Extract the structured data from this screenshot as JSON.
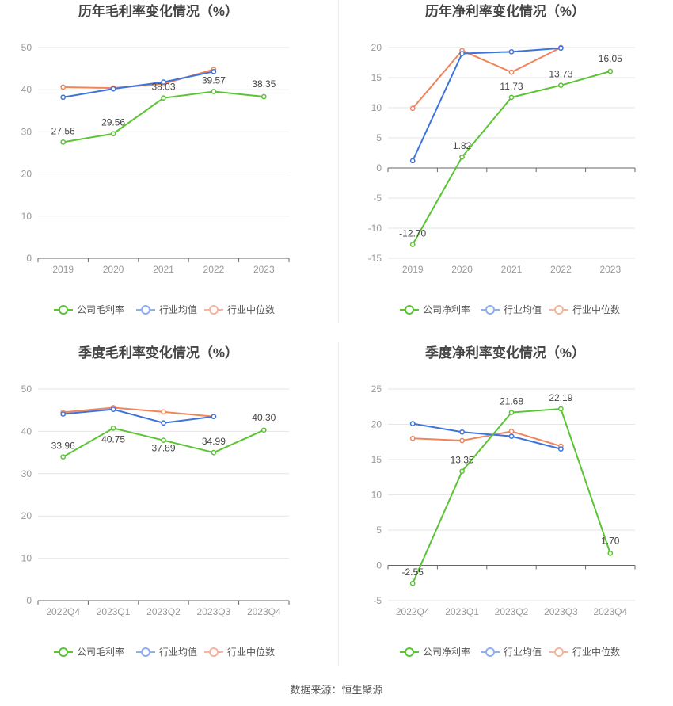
{
  "legend_labels": {
    "gross": [
      "公司毛利率",
      "行业均值",
      "行业中位数"
    ],
    "net": [
      "公司净利率",
      "行业均值",
      "行业中位数"
    ]
  },
  "colors": {
    "company": "#5ac434",
    "industry_avg": "#3d74db",
    "industry_median": "#f0845a",
    "avg_legend": "#8eaff0",
    "median_legend": "#f6b49a",
    "grid": "#e6e6e6",
    "axis": "#666666",
    "tick": "#999999",
    "title": "#444444"
  },
  "source": "数据来源：恒生聚源",
  "chart_data": [
    {
      "type": "line",
      "title": "历年毛利率变化情况（%）",
      "categories": [
        "2019",
        "2020",
        "2021",
        "2022",
        "2023"
      ],
      "ylim": [
        0,
        50
      ],
      "yticks": [
        0,
        10,
        20,
        30,
        40,
        50
      ],
      "series": [
        {
          "name": "公司毛利率",
          "values": [
            27.56,
            29.56,
            38.03,
            39.57,
            38.35
          ],
          "labels": [
            "27.56",
            "29.56",
            "38.03",
            "39.57",
            "38.35"
          ]
        },
        {
          "name": "行业均值",
          "values": [
            38.2,
            40.2,
            41.8,
            44.3,
            null
          ]
        },
        {
          "name": "行业中位数",
          "values": [
            40.6,
            40.4,
            41.4,
            44.8,
            null
          ]
        }
      ]
    },
    {
      "type": "line",
      "title": "历年净利率变化情况（%）",
      "categories": [
        "2019",
        "2020",
        "2021",
        "2022",
        "2023"
      ],
      "ylim": [
        -15,
        20
      ],
      "yticks": [
        -15,
        -10,
        -5,
        0,
        5,
        10,
        15,
        20
      ],
      "series": [
        {
          "name": "公司净利率",
          "values": [
            -12.7,
            1.82,
            11.73,
            13.73,
            16.05
          ],
          "labels": [
            "-12.70",
            "1.82",
            "11.73",
            "13.73",
            "16.05"
          ]
        },
        {
          "name": "行业均值",
          "values": [
            1.2,
            19.0,
            19.3,
            19.9,
            null
          ]
        },
        {
          "name": "行业中位数",
          "values": [
            9.9,
            19.5,
            15.9,
            20.0,
            null
          ]
        }
      ]
    },
    {
      "type": "line",
      "title": "季度毛利率变化情况（%）",
      "categories": [
        "2022Q4",
        "2023Q1",
        "2023Q2",
        "2023Q3",
        "2023Q4"
      ],
      "ylim": [
        0,
        50
      ],
      "yticks": [
        0,
        10,
        20,
        30,
        40,
        50
      ],
      "series": [
        {
          "name": "公司毛利率",
          "values": [
            33.96,
            40.75,
            37.89,
            34.99,
            40.3
          ],
          "labels": [
            "33.96",
            "40.75",
            "37.89",
            "34.99",
            "40.30"
          ]
        },
        {
          "name": "行业均值",
          "values": [
            44.1,
            45.2,
            42.0,
            43.5,
            null
          ]
        },
        {
          "name": "行业中位数",
          "values": [
            44.5,
            45.6,
            44.6,
            43.5,
            null
          ]
        }
      ]
    },
    {
      "type": "line",
      "title": "季度净利率变化情况（%）",
      "categories": [
        "2022Q4",
        "2023Q1",
        "2023Q2",
        "2023Q3",
        "2023Q4"
      ],
      "ylim": [
        -5,
        25
      ],
      "yticks": [
        -5,
        0,
        5,
        10,
        15,
        20,
        25
      ],
      "series": [
        {
          "name": "公司净利率",
          "values": [
            -2.55,
            13.35,
            21.68,
            22.19,
            1.7
          ],
          "labels": [
            "-2.55",
            "13.35",
            "21.68",
            "22.19",
            "1.70"
          ]
        },
        {
          "name": "行业均值",
          "values": [
            20.1,
            18.9,
            18.3,
            16.5,
            null
          ]
        },
        {
          "name": "行业中位数",
          "values": [
            18.0,
            17.7,
            19.0,
            16.9,
            null
          ]
        }
      ]
    }
  ]
}
